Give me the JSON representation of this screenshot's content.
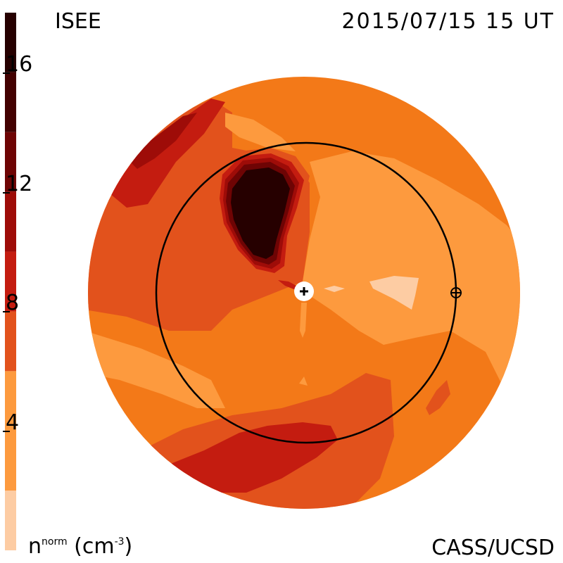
{
  "header": {
    "organization": "ISEE",
    "datetime": "2015/07/15 15 UT"
  },
  "footer": {
    "credit": "CASS/UCSD",
    "unit_base": "n",
    "unit_sup": "norm",
    "unit_rest": " (cm",
    "unit_exp": "-3",
    "unit_close": ")"
  },
  "colorbar": {
    "range": [
      0,
      18
    ],
    "ticks": [
      "4",
      "8",
      "12",
      "16"
    ],
    "tick_values": [
      4,
      8,
      12,
      16
    ],
    "levels": [
      {
        "from": 0,
        "to": 2,
        "color": "#fdcca3"
      },
      {
        "from": 2,
        "to": 6,
        "color": "#fd9a3e"
      },
      {
        "from": 6,
        "to": 8,
        "color": "#e2521c"
      },
      {
        "from": 8,
        "to": 10,
        "color": "#c41c10"
      },
      {
        "from": 10,
        "to": 12,
        "color": "#9e0c08"
      },
      {
        "from": 12,
        "to": 14,
        "color": "#6e0404"
      },
      {
        "from": 14,
        "to": 16,
        "color": "#430101"
      },
      {
        "from": 16,
        "to": 18,
        "color": "#260000"
      }
    ]
  },
  "map": {
    "sun_marker": "sun-plus-icon",
    "earth_marker": "earth-crosshair-icon",
    "orbit": "earth-orbit-circle"
  }
}
